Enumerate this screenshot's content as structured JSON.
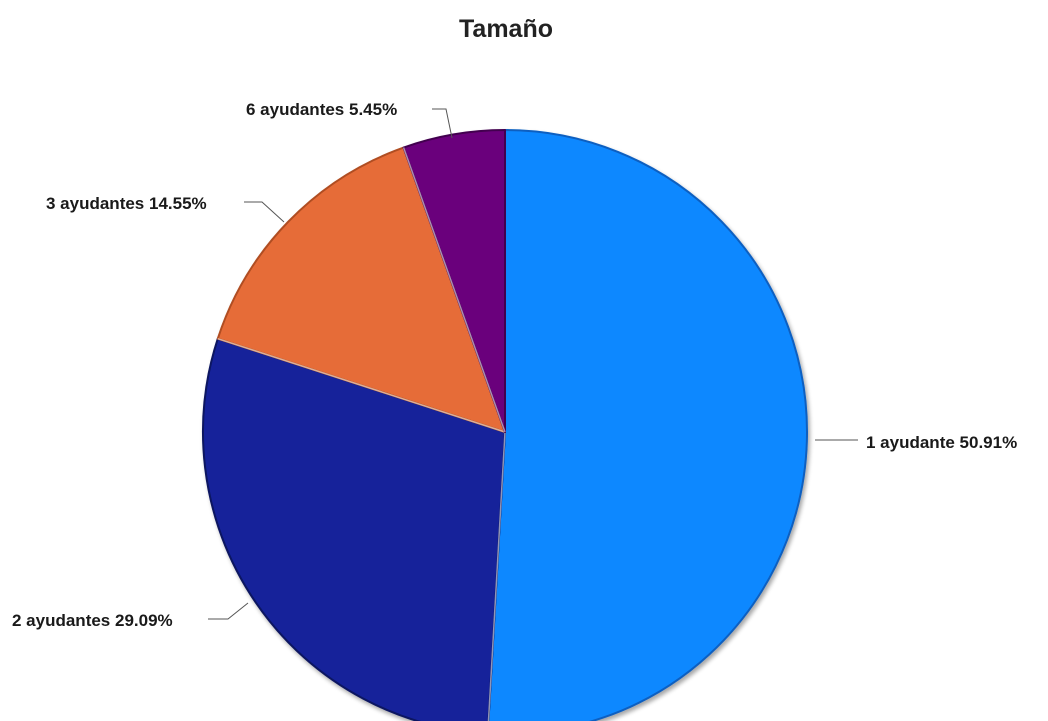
{
  "chart_data": {
    "type": "pie",
    "title": "Tamaño",
    "start_angle_deg": 0,
    "direction": "clockwise",
    "slices": [
      {
        "label": "1 ayudante",
        "value": 50.91,
        "value_text": "50.91%",
        "color": "#1188FF",
        "edge_color": "#0A5FC0",
        "label_side": "right"
      },
      {
        "label": "2 ayudantes",
        "value": 29.09,
        "value_text": "29.09%",
        "color": "#12239A",
        "edge_color": "#0A1460",
        "label_side": "left"
      },
      {
        "label": "3 ayudantes",
        "value": 14.55,
        "value_text": "14.55%",
        "color": "#E66C37",
        "edge_color": "#B04E22",
        "label_side": "left"
      },
      {
        "label": "6 ayudantes",
        "value": 5.45,
        "value_text": "5.45%",
        "color": "#6B007B",
        "edge_color": "#430050",
        "label_side": "left"
      }
    ],
    "legend": "none",
    "data_labels": "outside"
  }
}
